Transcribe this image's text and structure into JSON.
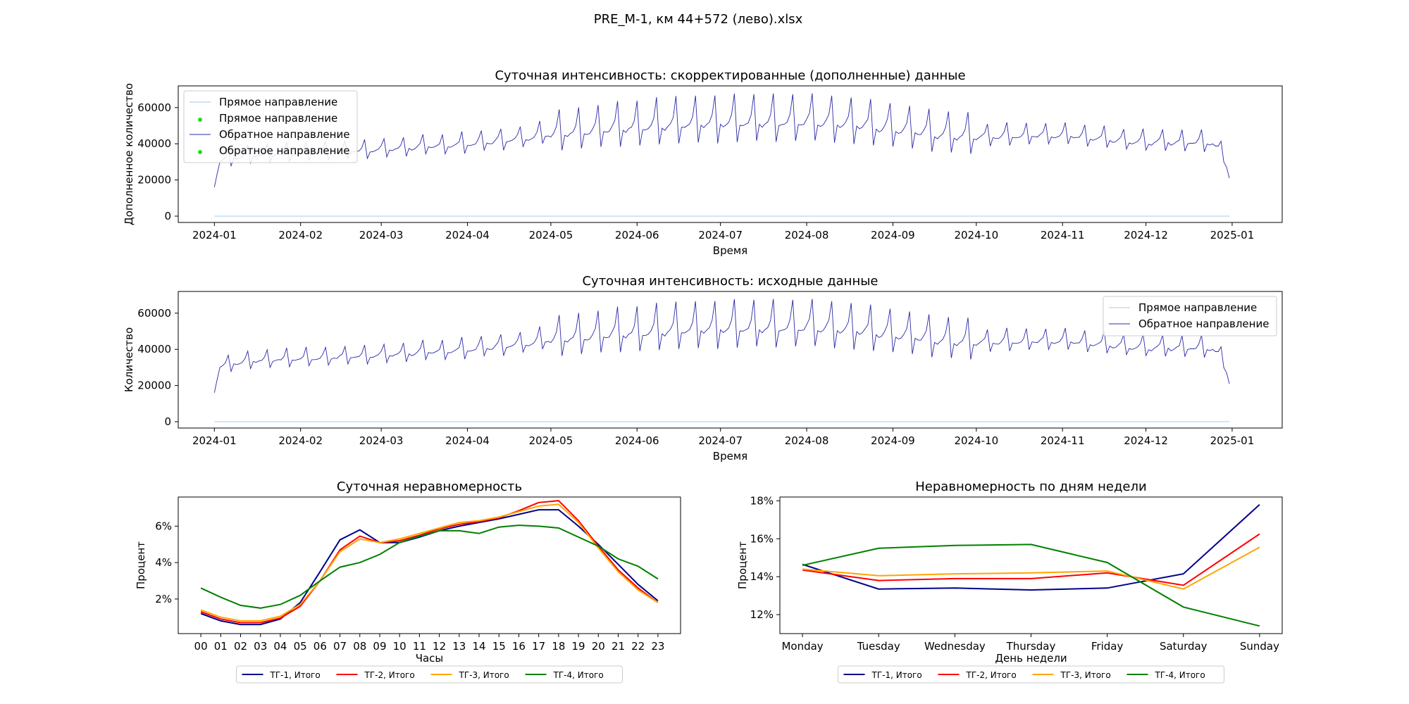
{
  "figure_title": "PRE_M-1, км  44+572 (лево).xlsx",
  "colors": {
    "forward": "#9fc9f7",
    "reverse": "#2a2aa8",
    "marker": "#22dd22",
    "tg1": "#00008b",
    "tg2": "#ff0000",
    "tg3": "#ffa500",
    "tg4": "#008000"
  },
  "chart_data": [
    {
      "type": "line",
      "title": "Суточная интенсивность: скорректированные (дополненные) данные",
      "xlabel": "Время",
      "ylabel": "Дополненное количество",
      "x_ticks": [
        "2024-01",
        "2024-02",
        "2024-03",
        "2024-04",
        "2024-05",
        "2024-06",
        "2024-07",
        "2024-08",
        "2024-09",
        "2024-10",
        "2024-11",
        "2024-12",
        "2025-01"
      ],
      "x_range": [
        "2023-12-19",
        "2025-01-19"
      ],
      "ylim": [
        -3500,
        72000
      ],
      "y_ticks": [
        0,
        20000,
        40000,
        60000
      ],
      "legend": {
        "placement": "top-left",
        "entries": [
          "Прямое направление",
          "Прямое направление",
          "Обратное направление",
          "Обратное направление"
        ]
      },
      "daily_series": [
        {
          "name": "Прямое направление",
          "start": "2024-01-01",
          "end": "2024-12-31",
          "values_constant": 0
        },
        {
          "name": "Обратное направление",
          "start": "2024-01-01",
          "end": "2024-12-31",
          "weekly_profile": [
            0.98,
            0.97,
            0.98,
            1.0,
            1.04,
            1.16,
            0.88
          ],
          "monthly_level": [
            [
              "2024-01-01",
              16000
            ],
            [
              "2024-01-03",
              31000
            ],
            [
              "2024-01-15",
              34000
            ],
            [
              "2024-02-01",
              35000
            ],
            [
              "2024-03-01",
              37000
            ],
            [
              "2024-04-01",
              40000
            ],
            [
              "2024-04-20",
              43000
            ],
            [
              "2024-05-01",
              46000
            ],
            [
              "2024-05-15",
              48000
            ],
            [
              "2024-06-01",
              50000
            ],
            [
              "2024-07-01",
              52000
            ],
            [
              "2024-08-01",
              53000
            ],
            [
              "2024-08-15",
              52000
            ],
            [
              "2024-09-01",
              49000
            ],
            [
              "2024-09-15",
              46000
            ],
            [
              "2024-10-01",
              44000
            ],
            [
              "2024-11-01",
              45000
            ],
            [
              "2024-12-01",
              41000
            ],
            [
              "2024-12-25",
              41000
            ],
            [
              "2024-12-29",
              34000
            ],
            [
              "2024-12-31",
              21000
            ]
          ]
        }
      ]
    },
    {
      "type": "line",
      "title": "Суточная интенсивность: исходные данные",
      "xlabel": "Время",
      "ylabel": "Количество",
      "x_ticks": [
        "2024-01",
        "2024-02",
        "2024-03",
        "2024-04",
        "2024-05",
        "2024-06",
        "2024-07",
        "2024-08",
        "2024-09",
        "2024-10",
        "2024-11",
        "2024-12",
        "2025-01"
      ],
      "x_range": [
        "2023-12-19",
        "2025-01-19"
      ],
      "ylim": [
        -3500,
        72000
      ],
      "y_ticks": [
        0,
        20000,
        40000,
        60000
      ],
      "legend": {
        "placement": "top-right",
        "entries": [
          "Прямое направление",
          "Обратное направление"
        ]
      },
      "same_series_as_chart": 0
    },
    {
      "type": "line",
      "title": "Суточная неравномерность",
      "xlabel": "Часы",
      "ylabel": "Процент",
      "categories": [
        "00",
        "01",
        "02",
        "03",
        "04",
        "05",
        "06",
        "07",
        "08",
        "09",
        "10",
        "11",
        "12",
        "13",
        "14",
        "15",
        "16",
        "17",
        "18",
        "19",
        "20",
        "21",
        "22",
        "23"
      ],
      "ylim": [
        0.1,
        7.6
      ],
      "y_ticks": [
        2,
        4,
        6
      ],
      "y_format": "percent",
      "legend": {
        "placement": "bottom-center-outside"
      },
      "series": [
        {
          "name": "ТГ-1, Итого",
          "color": "#00008b",
          "values": [
            1.2,
            0.8,
            0.6,
            0.6,
            0.9,
            1.8,
            3.5,
            5.25,
            5.8,
            5.1,
            5.1,
            5.4,
            5.75,
            6.0,
            6.2,
            6.4,
            6.65,
            6.9,
            6.9,
            6.0,
            5.0,
            3.9,
            2.8,
            1.9
          ]
        },
        {
          "name": "ТГ-2, Итого",
          "color": "#ff0000",
          "values": [
            1.3,
            0.9,
            0.7,
            0.7,
            0.95,
            1.6,
            3.0,
            4.7,
            5.45,
            5.1,
            5.2,
            5.5,
            5.85,
            6.1,
            6.25,
            6.45,
            6.85,
            7.3,
            7.4,
            6.3,
            4.9,
            3.6,
            2.6,
            1.8
          ]
        },
        {
          "name": "ТГ-3, Итого",
          "color": "#ffa500",
          "values": [
            1.4,
            1.0,
            0.8,
            0.8,
            1.05,
            1.7,
            3.0,
            4.6,
            5.3,
            5.1,
            5.3,
            5.6,
            5.9,
            6.2,
            6.3,
            6.5,
            6.8,
            7.1,
            7.2,
            6.2,
            4.8,
            3.5,
            2.5,
            1.8
          ]
        },
        {
          "name": "ТГ-4, Итого",
          "color": "#008000",
          "values": [
            2.6,
            2.1,
            1.65,
            1.5,
            1.7,
            2.2,
            3.0,
            3.75,
            4.0,
            4.45,
            5.1,
            5.45,
            5.75,
            5.75,
            5.6,
            5.95,
            6.05,
            6.0,
            5.9,
            5.4,
            4.9,
            4.2,
            3.8,
            3.1
          ]
        }
      ]
    },
    {
      "type": "line",
      "title": "Неравномерность по дням недели",
      "xlabel": "День недели",
      "ylabel": "Процент",
      "categories": [
        "Monday",
        "Tuesday",
        "Wednesday",
        "Thursday",
        "Friday",
        "Saturday",
        "Sunday"
      ],
      "ylim": [
        11.0,
        18.2
      ],
      "y_ticks": [
        12,
        14,
        16,
        18
      ],
      "y_format": "percent",
      "legend": {
        "placement": "bottom-center-outside"
      },
      "series": [
        {
          "name": "ТГ-1, Итого",
          "color": "#00008b",
          "values": [
            14.65,
            13.35,
            13.4,
            13.3,
            13.4,
            14.15,
            17.8
          ]
        },
        {
          "name": "ТГ-2, Итого",
          "color": "#ff0000",
          "values": [
            14.35,
            13.8,
            13.9,
            13.9,
            14.2,
            13.55,
            16.25
          ]
        },
        {
          "name": "ТГ-3, Итого",
          "color": "#ffa500",
          "values": [
            14.4,
            14.05,
            14.15,
            14.2,
            14.3,
            13.35,
            15.55
          ]
        },
        {
          "name": "ТГ-4, Итого",
          "color": "#008000",
          "values": [
            14.6,
            15.5,
            15.65,
            15.7,
            14.75,
            12.4,
            11.4
          ]
        }
      ]
    }
  ]
}
